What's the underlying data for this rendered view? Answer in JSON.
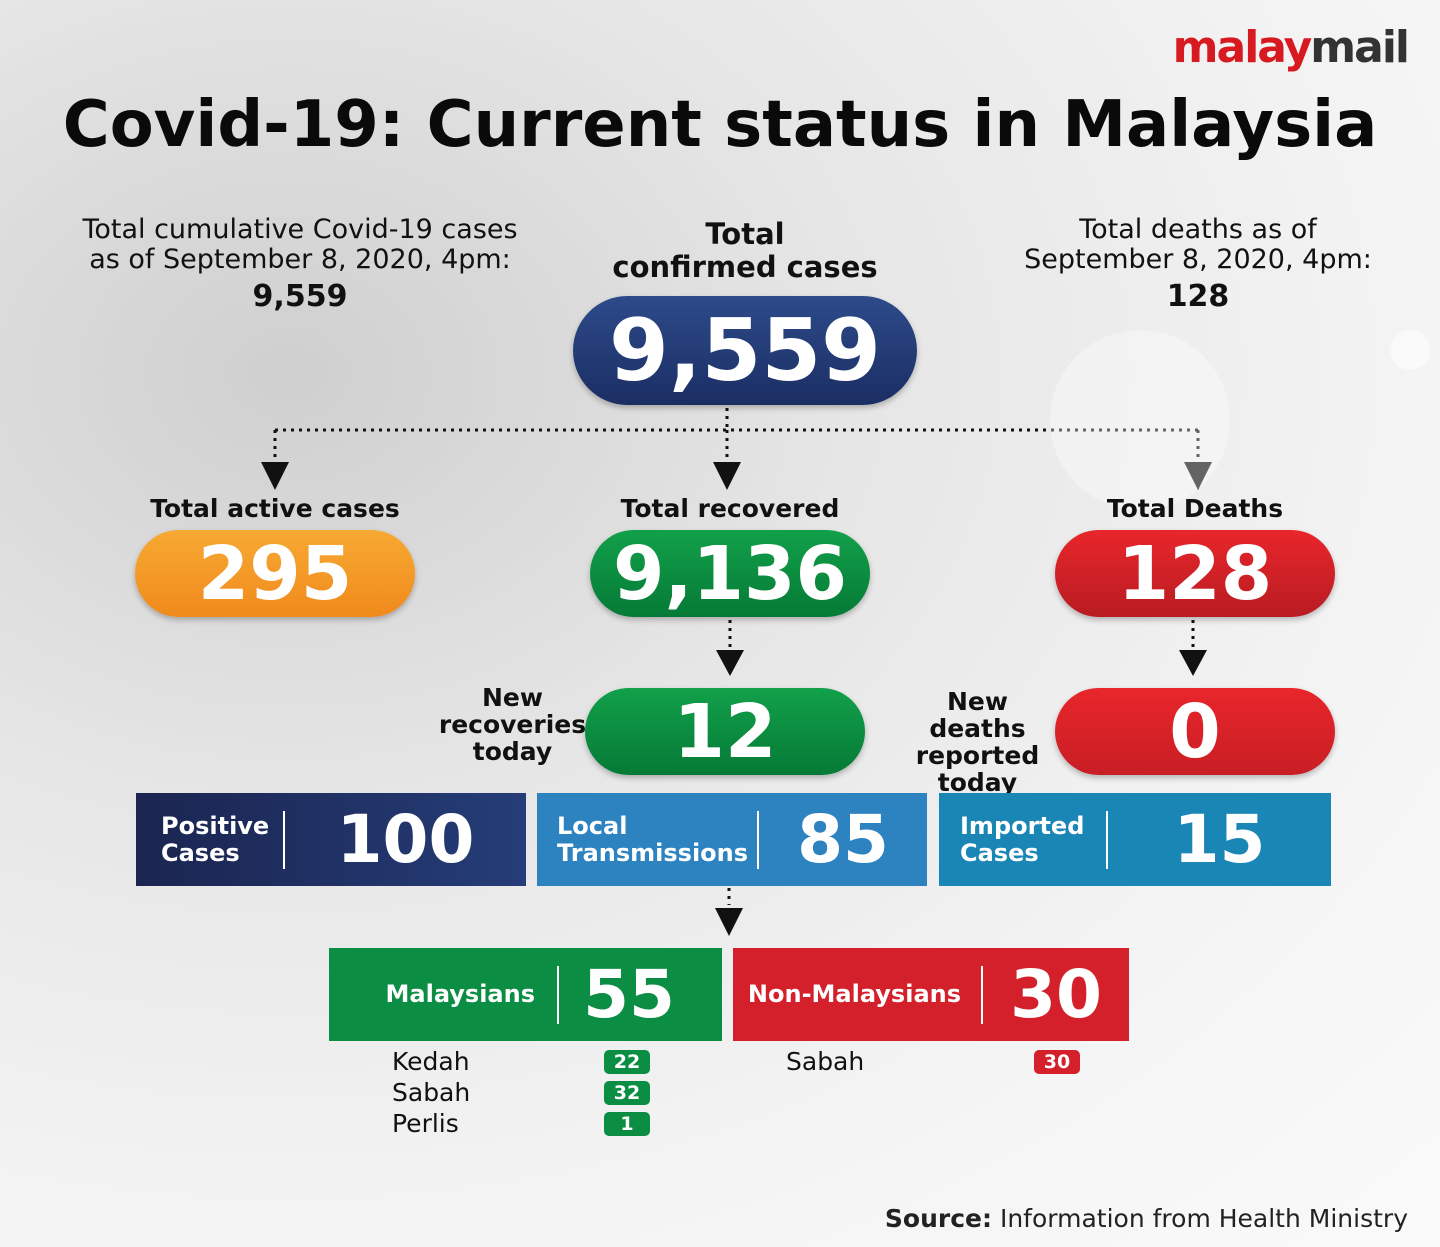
{
  "brand": {
    "part1": "malay",
    "part2": "mail"
  },
  "title": "Covid-19: Current status in Malaysia",
  "cumulative": {
    "label_lines": [
      "Total cumulative Covid-19 cases",
      "as of September 8, 2020, 4pm:"
    ],
    "value": "9,559"
  },
  "deaths_as_of": {
    "label_lines": [
      "Total deaths as of",
      "September 8, 2020, 4pm:"
    ],
    "value": "128"
  },
  "confirmed": {
    "label_lines": [
      "Total",
      "confirmed cases"
    ],
    "value": "9,559"
  },
  "active": {
    "label": "Total active cases",
    "value": "295"
  },
  "recovered": {
    "label": "Total recovered",
    "value": "9,136"
  },
  "deaths": {
    "label": "Total Deaths",
    "value": "128"
  },
  "new_recoveries": {
    "label_lines": [
      "New",
      "recoveries",
      "today"
    ],
    "value": "12"
  },
  "new_deaths": {
    "label_lines": [
      "New deaths",
      "reported",
      "today"
    ],
    "value": "0"
  },
  "breakdown": [
    {
      "label_lines": [
        "Positive",
        "Cases"
      ],
      "value": "100"
    },
    {
      "label_lines": [
        "Local",
        "Transmissions"
      ],
      "value": "85"
    },
    {
      "label_lines": [
        "Imported",
        "Cases"
      ],
      "value": "15"
    }
  ],
  "origin": [
    {
      "label": "Malaysians",
      "value": "55",
      "states": [
        {
          "name": "Kedah",
          "value": "22"
        },
        {
          "name": "Sabah",
          "value": "32"
        },
        {
          "name": "Perlis",
          "value": "1"
        }
      ]
    },
    {
      "label": "Non-Malaysians",
      "value": "30",
      "states": [
        {
          "name": "Sabah",
          "value": "30"
        }
      ]
    }
  ],
  "source": {
    "label": "Source:",
    "text": "Information from Health Ministry"
  }
}
